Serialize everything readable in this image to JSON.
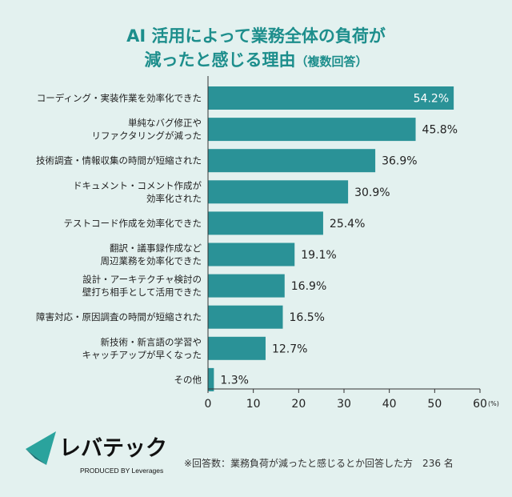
{
  "title": {
    "line1": "AI 活用によって業務全体の負荷が",
    "line2": "減ったと感じる理由",
    "line2_sub": "（複数回答）"
  },
  "chart_data": {
    "type": "bar",
    "orientation": "horizontal",
    "categories": [
      [
        "コーディング・実装作業を効率化できた"
      ],
      [
        "単純なバグ修正や",
        "リファクタリングが減った"
      ],
      [
        "技術調査・情報収集の時間が短縮された"
      ],
      [
        "ドキュメント・コメント作成が",
        "効率化された"
      ],
      [
        "テストコード作成を効率化できた"
      ],
      [
        "翻訳・議事録作成など",
        "周辺業務を効率化できた"
      ],
      [
        "設計・アーキテクチャ検討の",
        "壁打ち相手として活用できた"
      ],
      [
        "障害対応・原因調査の時間が短縮された"
      ],
      [
        "新技術・新言語の学習や",
        "キャッチアップが早くなった"
      ],
      [
        "その他"
      ]
    ],
    "values": [
      54.2,
      45.8,
      36.9,
      30.9,
      25.4,
      19.1,
      16.9,
      16.5,
      12.7,
      1.3
    ],
    "value_labels": [
      "54.2%",
      "45.8%",
      "36.9%",
      "30.9%",
      "25.4%",
      "19.1%",
      "16.9%",
      "16.5%",
      "12.7%",
      "1.3%"
    ],
    "xlim": [
      0,
      60
    ],
    "xticks": [
      "0",
      "10",
      "20",
      "30",
      "40",
      "50",
      "60"
    ],
    "x_unit": "(%)",
    "bar_color": "#2a9297",
    "grid": false
  },
  "logo": {
    "name": "レバテック",
    "tagline": "PRODUCED BY Leverages"
  },
  "footnote": "※回答数：業務負荷が減ったと感じるとか回答した方　236 名"
}
